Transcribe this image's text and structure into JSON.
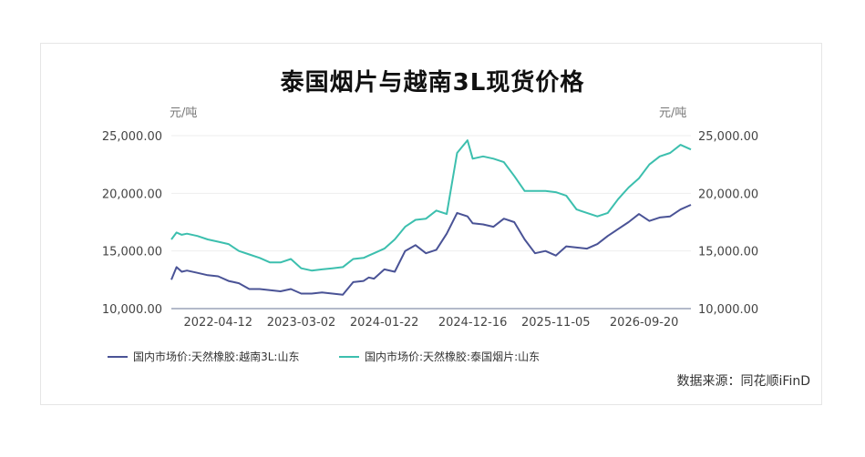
{
  "chart_data": {
    "type": "line",
    "title": "泰国烟片与越南3L现货价格",
    "y_unit_left": "元/吨",
    "y_unit_right": "元/吨",
    "ylim": [
      10000,
      25000
    ],
    "y_ticks": [
      "25,000.00",
      "20,000.00",
      "15,000.00",
      "10,000.00"
    ],
    "y_tick_values": [
      25000,
      20000,
      15000,
      10000
    ],
    "x_ticks": [
      "2022-04-12",
      "2023-03-02",
      "2024-01-22",
      "2024-12-16",
      "2025-11-05",
      "2026-09-20"
    ],
    "x_tick_values": [
      0.09,
      0.25,
      0.41,
      0.58,
      0.74,
      0.91
    ],
    "grid": true,
    "legend_position": "bottom-left",
    "series": [
      {
        "name": "国内市场价:天然橡胶:越南3L:山东",
        "color": "#4a5396",
        "x": [
          0,
          0.01,
          0.02,
          0.03,
          0.05,
          0.07,
          0.09,
          0.11,
          0.13,
          0.15,
          0.17,
          0.19,
          0.21,
          0.23,
          0.25,
          0.27,
          0.29,
          0.31,
          0.33,
          0.35,
          0.37,
          0.38,
          0.39,
          0.41,
          0.43,
          0.45,
          0.47,
          0.49,
          0.51,
          0.53,
          0.55,
          0.57,
          0.58,
          0.6,
          0.62,
          0.64,
          0.66,
          0.68,
          0.7,
          0.72,
          0.74,
          0.76,
          0.78,
          0.8,
          0.82,
          0.84,
          0.86,
          0.88,
          0.9,
          0.92,
          0.94,
          0.96,
          0.98,
          1
        ],
        "values": [
          12500,
          13600,
          13200,
          13300,
          13100,
          12900,
          12800,
          12400,
          12200,
          11700,
          11700,
          11600,
          11500,
          11700,
          11300,
          11300,
          11400,
          11300,
          11200,
          12300,
          12400,
          12700,
          12600,
          13400,
          13200,
          15000,
          15500,
          14800,
          15100,
          16500,
          18300,
          18000,
          17400,
          17300,
          17100,
          17800,
          17500,
          16000,
          14800,
          15000,
          14600,
          15400,
          15300,
          15200,
          15600,
          16300,
          16900,
          17500,
          18200,
          17600,
          17900,
          18000,
          18600,
          19000
        ]
      },
      {
        "name": "国内市场价:天然橡胶:泰国烟片:山东",
        "color": "#3cbfae",
        "x": [
          0,
          0.01,
          0.02,
          0.03,
          0.05,
          0.07,
          0.09,
          0.11,
          0.13,
          0.15,
          0.17,
          0.19,
          0.21,
          0.23,
          0.25,
          0.27,
          0.29,
          0.31,
          0.33,
          0.35,
          0.37,
          0.38,
          0.39,
          0.41,
          0.43,
          0.45,
          0.47,
          0.49,
          0.51,
          0.53,
          0.55,
          0.57,
          0.58,
          0.6,
          0.62,
          0.64,
          0.66,
          0.68,
          0.7,
          0.72,
          0.74,
          0.76,
          0.78,
          0.8,
          0.82,
          0.84,
          0.86,
          0.88,
          0.9,
          0.92,
          0.94,
          0.96,
          0.98,
          1
        ],
        "values": [
          16000,
          16600,
          16400,
          16500,
          16300,
          16000,
          15800,
          15600,
          15000,
          14700,
          14400,
          14000,
          14000,
          14300,
          13500,
          13300,
          13400,
          13500,
          13600,
          14300,
          14400,
          14600,
          14800,
          15200,
          16000,
          17100,
          17700,
          17800,
          18500,
          18200,
          23500,
          24600,
          23000,
          23200,
          23000,
          22700,
          21500,
          20200,
          20200,
          20200,
          20100,
          19800,
          18600,
          18300,
          18000,
          18300,
          19500,
          20500,
          21300,
          22500,
          23200,
          23500,
          24200,
          23800
        ]
      }
    ]
  },
  "source_text": "数据来源：同花顺iFinD"
}
